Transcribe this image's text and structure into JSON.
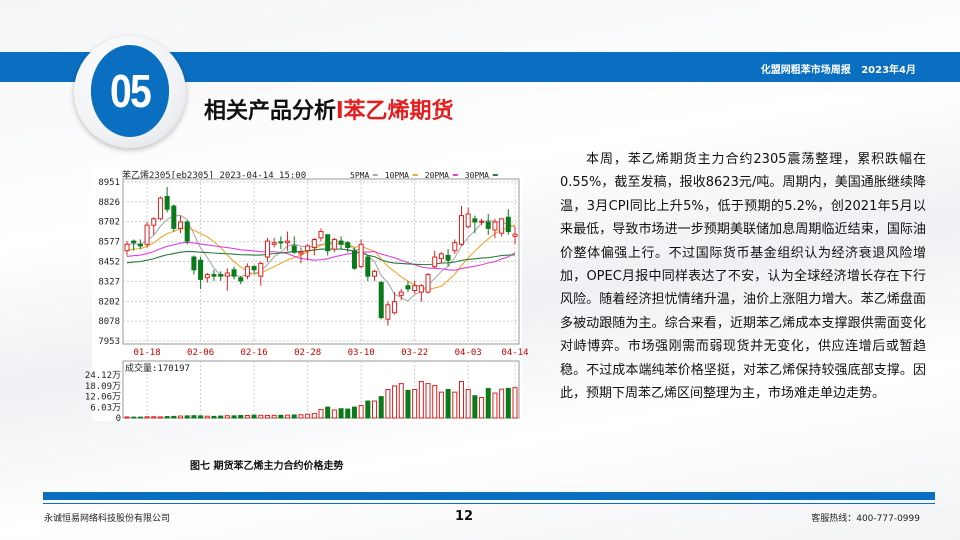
{
  "header": {
    "section_number": "05",
    "title_main": "相关产品分析",
    "title_highlight": "l苯乙烯期货",
    "report_name": "化盟网粗苯市场周报   2023年4月",
    "accent_color": "#0a6fc0",
    "highlight_color": "#e41e1e"
  },
  "chart_data": {
    "type": "candlestick",
    "title": "苯乙烯2305[eb2305] 2023-04-14 15:00",
    "legend": [
      {
        "name": "5PMA",
        "color": "#aaaaaa"
      },
      {
        "name": "10PMA",
        "color": "#f0a830"
      },
      {
        "name": "20PMA",
        "color": "#e040e0"
      },
      {
        "name": "30PMA",
        "color": "#2a7a3a"
      }
    ],
    "up_color": "#e02020",
    "down_color": "#0a7a1a",
    "y_ticks": [
      8951,
      8826,
      8702,
      8577,
      8452,
      8327,
      8202,
      8078,
      7953
    ],
    "ylim": [
      7953,
      8951
    ],
    "x_tick_labels": [
      {
        "label": "01-18",
        "index": 3
      },
      {
        "label": "02-06",
        "index": 11
      },
      {
        "label": "02-16",
        "index": 19
      },
      {
        "label": "02-28",
        "index": 27
      },
      {
        "label": "03-10",
        "index": 35
      },
      {
        "label": "03-22",
        "index": 43
      },
      {
        "label": "04-03",
        "index": 51
      },
      {
        "label": "04-14",
        "index": 58
      }
    ],
    "candles_ohlc": [
      [
        8520,
        8580,
        8490,
        8560
      ],
      [
        8580,
        8590,
        8520,
        8570
      ],
      [
        8560,
        8590,
        8530,
        8550
      ],
      [
        8560,
        8700,
        8540,
        8680
      ],
      [
        8680,
        8730,
        8620,
        8720
      ],
      [
        8720,
        8860,
        8710,
        8850
      ],
      [
        8860,
        8920,
        8760,
        8780
      ],
      [
        8800,
        8810,
        8640,
        8660
      ],
      [
        8660,
        8740,
        8630,
        8700
      ],
      [
        8700,
        8710,
        8560,
        8580
      ],
      [
        8480,
        8490,
        8370,
        8400
      ],
      [
        8460,
        8480,
        8280,
        8340
      ],
      [
        8350,
        8380,
        8320,
        8370
      ],
      [
        8370,
        8400,
        8330,
        8360
      ],
      [
        8370,
        8390,
        8330,
        8360
      ],
      [
        8360,
        8410,
        8270,
        8380
      ],
      [
        8400,
        8420,
        8340,
        8360
      ],
      [
        8350,
        8360,
        8310,
        8330
      ],
      [
        8360,
        8440,
        8340,
        8420
      ],
      [
        8420,
        8430,
        8380,
        8400
      ],
      [
        8360,
        8450,
        8300,
        8440
      ],
      [
        8480,
        8600,
        8450,
        8580
      ],
      [
        8560,
        8600,
        8540,
        8570
      ],
      [
        8575,
        8610,
        8530,
        8570
      ],
      [
        8570,
        8640,
        8520,
        8580
      ],
      [
        8550,
        8610,
        8500,
        8510
      ],
      [
        8500,
        8540,
        8440,
        8510
      ],
      [
        8520,
        8560,
        8460,
        8550
      ],
      [
        8540,
        8600,
        8490,
        8590
      ],
      [
        8600,
        8660,
        8580,
        8640
      ],
      [
        8620,
        8620,
        8490,
        8520
      ],
      [
        8530,
        8600,
        8510,
        8590
      ],
      [
        8580,
        8610,
        8530,
        8560
      ],
      [
        8570,
        8580,
        8510,
        8540
      ],
      [
        8520,
        8540,
        8400,
        8410
      ],
      [
        8420,
        8590,
        8410,
        8560
      ],
      [
        8480,
        8490,
        8330,
        8360
      ],
      [
        8360,
        8400,
        8330,
        8390
      ],
      [
        8320,
        8330,
        8090,
        8100
      ],
      [
        8090,
        8200,
        8050,
        8180
      ],
      [
        8130,
        8260,
        8120,
        8200
      ],
      [
        8240,
        8280,
        8210,
        8260
      ],
      [
        8300,
        8330,
        8260,
        8280
      ],
      [
        8270,
        8330,
        8250,
        8300
      ],
      [
        8260,
        8310,
        8200,
        8300
      ],
      [
        8260,
        8380,
        8250,
        8370
      ],
      [
        8420,
        8520,
        8410,
        8480
      ],
      [
        8470,
        8510,
        8440,
        8500
      ],
      [
        8490,
        8530,
        8420,
        8460
      ],
      [
        8520,
        8590,
        8500,
        8570
      ],
      [
        8560,
        8800,
        8550,
        8740
      ],
      [
        8670,
        8790,
        8660,
        8750
      ],
      [
        8720,
        8740,
        8630,
        8700
      ],
      [
        8700,
        8720,
        8680,
        8705
      ],
      [
        8700,
        8750,
        8620,
        8660
      ],
      [
        8650,
        8720,
        8600,
        8700
      ],
      [
        8630,
        8720,
        8610,
        8720
      ],
      [
        8730,
        8780,
        8620,
        8640
      ],
      [
        8610,
        8670,
        8560,
        8623
      ]
    ],
    "volume": {
      "label": "成交量:170197",
      "unit": "万",
      "y_ticks": [
        "24.12万",
        "18.09万",
        "12.06万",
        "6.03万",
        "0"
      ],
      "ylim": [
        0,
        24.12
      ],
      "values": [
        0.6,
        0.5,
        0.5,
        0.7,
        0.7,
        0.6,
        0.8,
        0.9,
        1.1,
        1.2,
        1.3,
        1.2,
        1.0,
        0.9,
        1.1,
        1.3,
        1.2,
        1.4,
        1.4,
        1.6,
        1.5,
        1.4,
        1.5,
        1.5,
        1.6,
        1.7,
        1.8,
        2.1,
        2.5,
        4.8,
        6.1,
        4.5,
        5.2,
        5.0,
        6.1,
        7.0,
        9.5,
        9.5,
        12.0,
        16.0,
        18.0,
        19.3,
        15.5,
        16.0,
        20.5,
        19.3,
        18.2,
        14.5,
        16.0,
        14.5,
        20.5,
        16.0,
        12.5,
        11.5,
        16.5,
        14.0,
        16.2,
        16.6,
        17.02
      ]
    }
  },
  "figure_caption": "图七 期货苯乙烯主力合约价格走势",
  "analysis_text": "本周，苯乙烯期货主力合约2305震荡整理，累积跌幅在0.55%，截至发稿，报收8623元/吨。周期内，美国通胀继续降温，3月CPI同比上升5%，低于预期的5.2%，创2021年5月以来最低，导致市场进一步预期美联储加息周期临近结束，国际油价整体偏强上行。不过国际货币基金组织认为经济衰退风险增加，OPEC月报中同样表达了不安，认为全球经济增长存在下行风险。随着经济担忧情绪升温，油价上涨阻力增大。苯乙烯盘面多被动跟随为主。综合来看，近期苯乙烯成本支撑跟供需面变化对峙博弈。市场强刚需而弱现货并无变化，供应连增后或暂趋稳。不过成本端纯苯价格坚挺，对苯乙烯保持较强底部支撑。因此，预期下周苯乙烯区间整理为主，市场难走单边走势。",
  "footer": {
    "company": "永诚恒易网络科技股份有限公司",
    "page_number": "12",
    "hotline": "客服热线：400-777-0999"
  }
}
